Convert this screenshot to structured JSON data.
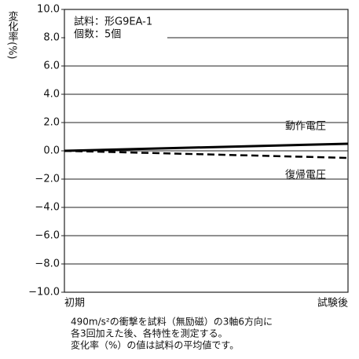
{
  "chart_data": {
    "type": "line",
    "y_label": "変化率(%)",
    "info": [
      "試料：形G9EA-1",
      "個数：5個"
    ],
    "notes": [
      "490m/s²の衝撃を試料（無励磁）の3軸6方向に",
      "各3回加えた後、各特性を測定する。",
      "変化率（%）の値は試料の平均値です。"
    ],
    "categories": [
      "初期",
      "試験後"
    ],
    "series": [
      {
        "name": "動作電圧",
        "color": "#000000",
        "line_style": "solid",
        "values": [
          0,
          0.5
        ]
      },
      {
        "name": "復帰電圧",
        "color": "#000000",
        "line_style": "dashed",
        "values": [
          0,
          -0.5
        ]
      }
    ],
    "ylim": [
      -10,
      10
    ],
    "yticks": [
      {
        "value": 10,
        "label": "10.0"
      },
      {
        "value": 8,
        "label": "8.0"
      },
      {
        "value": 6,
        "label": "6.0"
      },
      {
        "value": 4,
        "label": "4.0"
      },
      {
        "value": 2,
        "label": "2.0"
      },
      {
        "value": 0,
        "label": "0.0"
      },
      {
        "value": -2,
        "label": "−2.0"
      },
      {
        "value": -4,
        "label": "−4.0"
      },
      {
        "value": -6,
        "label": "−6.0"
      },
      {
        "value": -8,
        "label": "−8.0"
      },
      {
        "value": -10,
        "label": "−10.0"
      }
    ],
    "grid": true
  }
}
